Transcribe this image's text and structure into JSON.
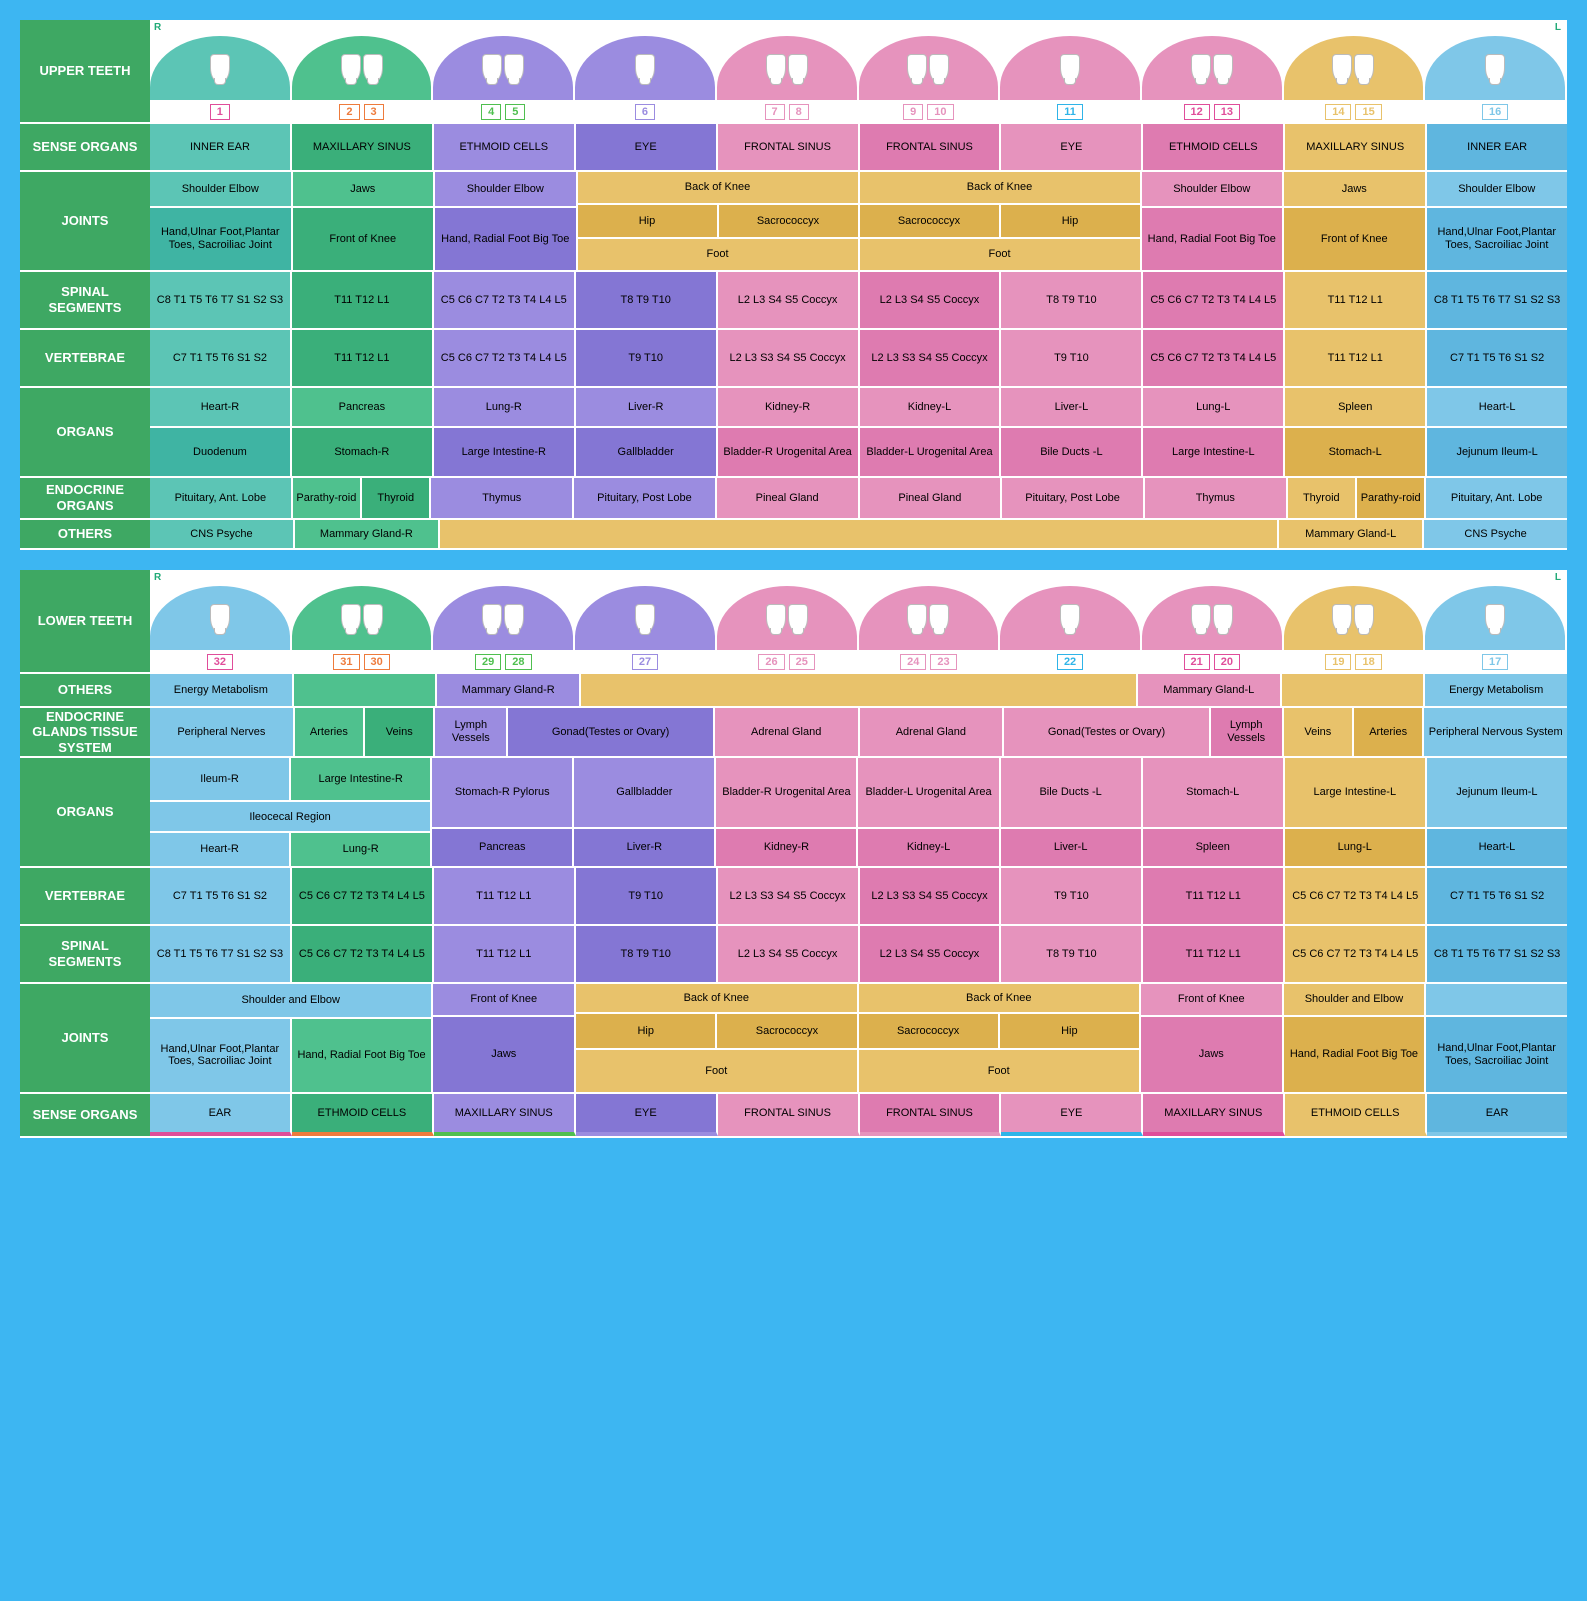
{
  "colors": {
    "bg": "#3db6f2",
    "label": "#3ea863",
    "teal": "#5cc5b5",
    "teal_d": "#3fb4a3",
    "green": "#4fc18e",
    "green_d": "#3aaf7a",
    "purple": "#9b8ce0",
    "purple_d": "#8476d4",
    "pink": "#e693bd",
    "pink_d": "#de7bb0",
    "gold": "#e8c26b",
    "gold_d": "#dcb04d",
    "blue": "#7fc7e8",
    "blue_d": "#5fb6df",
    "orange": "#ee7b3c",
    "magenta": "#e04d9a",
    "cyan": "#2fb4e8",
    "lime": "#4fbf4f"
  },
  "upper": {
    "title": "UPPER TEETH",
    "rows": [
      "SENSE ORGANS",
      "JOINTS",
      "SPINAL SEGMENTS",
      "VERTEBRAE",
      "ORGANS",
      "ENDOCRINE ORGANS",
      "OTHERS"
    ],
    "teeth": [
      {
        "n": [
          "1"
        ],
        "c": "teal",
        "uc": "magenta"
      },
      {
        "n": [
          "2",
          "3"
        ],
        "c": "green",
        "uc": "orange"
      },
      {
        "n": [
          "4",
          "5"
        ],
        "c": "purple",
        "uc": "lime"
      },
      {
        "n": [
          "6"
        ],
        "c": "purple",
        "uc": "purple"
      },
      {
        "n": [
          "7",
          "8"
        ],
        "c": "pink",
        "uc": "pink"
      },
      {
        "n": [
          "9",
          "10"
        ],
        "c": "pink",
        "uc": "pink"
      },
      {
        "n": [
          "11"
        ],
        "c": "pink",
        "uc": "cyan"
      },
      {
        "n": [
          "12",
          "13"
        ],
        "c": "pink",
        "uc": "magenta"
      },
      {
        "n": [
          "14",
          "15"
        ],
        "c": "gold",
        "uc": "gold"
      },
      {
        "n": [
          "16"
        ],
        "c": "blue",
        "uc": "blue"
      }
    ],
    "sense": [
      "INNER EAR",
      "MAXILLARY SINUS",
      "ETHMOID CELLS",
      "EYE",
      "FRONTAL SINUS",
      "FRONTAL SINUS",
      "EYE",
      "ETHMOID CELLS",
      "MAXILLARY SINUS",
      "INNER EAR"
    ],
    "joints_top": {
      "c1": "Shoulder Elbow",
      "c2": "Jaws",
      "c3": "Shoulder Elbow",
      "bk": "Back of Knee",
      "c8": "Shoulder Elbow",
      "c9": "Jaws",
      "c10": "Shoulder Elbow"
    },
    "joints_mid": {
      "c1": "Hand,Ulnar Foot,Plantar Toes, Sacroiliac Joint",
      "c2": "Front of Knee",
      "c3": "Hand, Radial Foot Big Toe",
      "hip1": "Hip",
      "sac1": "Sacrococcyx",
      "sac2": "Sacrococcyx",
      "hip2": "Hip",
      "c8": "Hand, Radial Foot Big Toe",
      "c9": "Front of Knee",
      "c10": "Hand,Ulnar Foot,Plantar Toes, Sacroiliac Joint",
      "foot1": "Foot",
      "foot2": "Foot"
    },
    "spinal": [
      "C8 T1 T5 T6 T7 S1 S2 S3",
      "T11 T12 L1",
      "C5 C6 C7 T2 T3 T4 L4 L5",
      "T8 T9 T10",
      "L2 L3 S4 S5 Coccyx",
      "L2 L3 S4 S5 Coccyx",
      "T8 T9 T10",
      "C5 C6 C7 T2 T3 T4 L4 L5",
      "T11 T12 L1",
      "C8 T1 T5 T6 T7 S1 S2 S3"
    ],
    "vert": [
      "C7 T1 T5 T6 S1 S2",
      "T11 T12 L1",
      "C5 C6 C7 T2 T3 T4 L4 L5",
      "T9 T10",
      "L2 L3 S3 S4 S5 Coccyx",
      "L2 L3 S3 S4 S5 Coccyx",
      "T9 T10",
      "C5 C6 C7 T2 T3 T4 L4 L5",
      "T11 T12 L1",
      "C7 T1 T5 T6 S1 S2"
    ],
    "organs1": [
      "Heart-R",
      "Pancreas",
      "Lung-R",
      "Liver-R",
      "Kidney-R",
      "Kidney-L",
      "Liver-L",
      "Lung-L",
      "Spleen",
      "Heart-L"
    ],
    "organs2": [
      "Duodenum",
      "Stomach-R",
      "Large Intestine-R",
      "Gallbladder",
      "Bladder-R Urogenital Area",
      "Bladder-L Urogenital Area",
      "Bile Ducts -L",
      "Large Intestine-L",
      "Stomach-L",
      "Jejunum Ileum-L"
    ],
    "endo": {
      "c1": "Pituitary, Ant. Lobe",
      "c2a": "Parathy-roid",
      "c2b": "Thyroid",
      "c3": "Thymus",
      "mid1": "Pituitary, Post Lobe",
      "pineal1": "Pineal Gland",
      "pineal2": "Pineal Gland",
      "mid2": "Pituitary, Post Lobe",
      "c8": "Thymus",
      "c9a": "Thyroid",
      "c9b": "Parathy-roid",
      "c10": "Pituitary, Ant. Lobe"
    },
    "others": {
      "c1": "CNS Psyche",
      "c2": "Mammary Gland-R",
      "c9": "Mammary Gland-L",
      "c10": "CNS Psyche"
    }
  },
  "lower": {
    "title": "LOWER TEETH",
    "rows": [
      "OTHERS",
      "ENDOCRINE GLANDS TISSUE SYSTEM",
      "ORGANS",
      "VERTEBRAE",
      "SPINAL SEGMENTS",
      "JOINTS",
      "SENSE ORGANS"
    ],
    "teeth": [
      {
        "n": [
          "32"
        ],
        "c": "blue",
        "uc": "magenta"
      },
      {
        "n": [
          "31",
          "30"
        ],
        "c": "green",
        "uc": "orange"
      },
      {
        "n": [
          "29",
          "28"
        ],
        "c": "purple",
        "uc": "lime"
      },
      {
        "n": [
          "27"
        ],
        "c": "purple",
        "uc": "purple"
      },
      {
        "n": [
          "26",
          "25"
        ],
        "c": "pink",
        "uc": "pink"
      },
      {
        "n": [
          "24",
          "23"
        ],
        "c": "pink",
        "uc": "pink"
      },
      {
        "n": [
          "22"
        ],
        "c": "pink",
        "uc": "cyan"
      },
      {
        "n": [
          "21",
          "20"
        ],
        "c": "pink",
        "uc": "magenta"
      },
      {
        "n": [
          "19",
          "18"
        ],
        "c": "gold",
        "uc": "gold"
      },
      {
        "n": [
          "17"
        ],
        "c": "blue",
        "uc": "blue"
      }
    ],
    "others": {
      "c1": "Energy Metabolism",
      "c3": "Mammary Gland-R",
      "c8": "Mammary Gland-L",
      "c10": "Energy Metabolism"
    },
    "endo": {
      "c1": "Peripheral Nerves",
      "c2a": "Arteries",
      "c2b": "Veins",
      "c3": "Lymph Vessels",
      "gonad1": "Gonad(Testes or Ovary)",
      "ad1": "Adrenal Gland",
      "ad2": "Adrenal Gland",
      "gonad2": "Gonad(Testes or Ovary)",
      "c8": "Lymph Vessels",
      "c9a": "Veins",
      "c9b": "Arteries",
      "c10": "Peripheral Nervous System"
    },
    "organs_a": {
      "c1": "Ileum-R",
      "c2": "Large Intestine-R",
      "c3": "Stomach-R Pylorus",
      "c4": "Gallbladder",
      "c5": "Bladder-R Urogenital Area",
      "c6": "Bladder-L Urogenital Area",
      "c7": "Bile Ducts -L",
      "c8": "Stomach-L",
      "c9": "Large Intestine-L",
      "c10": "Jejunum Ileum-L"
    },
    "organs_b": {
      "c12": "Ileocecal Region"
    },
    "organs_c": [
      "Heart-R",
      "Lung-R",
      "Pancreas",
      "Liver-R",
      "Kidney-R",
      "Kidney-L",
      "Liver-L",
      "Spleen",
      "Lung-L",
      "Heart-L"
    ],
    "vert": [
      "C7 T1 T5 T6 S1 S2",
      "C5 C6 C7 T2 T3 T4 L4 L5",
      "T11 T12 L1",
      "T9 T10",
      "L2 L3 S3 S4 S5 Coccyx",
      "L2 L3 S3 S4 S5 Coccyx",
      "T9 T10",
      "T11 T12 L1",
      "C5 C6 C7 T2 T3 T4 L4 L5",
      "C7 T1 T5 T6 S1 S2"
    ],
    "spinal": [
      "C8 T1 T5 T6 T7 S1 S2 S3",
      "C5 C6 C7 T2 T3 T4 L4 L5",
      "T11 T12 L1",
      "T8 T9 T10",
      "L2 L3 S4 S5 Coccyx",
      "L2 L3 S4 S5 Coccyx",
      "T8 T9 T10",
      "T11 T12 L1",
      "C5 C6 C7 T2 T3 T4 L4 L5",
      "C8 T1 T5 T6 T7 S1 S2 S3"
    ],
    "joints_a": {
      "se1": "Shoulder and Elbow",
      "fk1": "Front of Knee",
      "bk": "Back of Knee",
      "fk2": "Front of Knee",
      "se2": "Shoulder and Elbow"
    },
    "joints_b": {
      "c1": "Hand,Ulnar Foot,Plantar Toes, Sacroiliac Joint",
      "c2": "Hand, Radial Foot Big Toe",
      "c3": "Jaws",
      "hip1": "Hip",
      "sac1": "Sacrococcyx",
      "sac2": "Sacrococcyx",
      "hip2": "Hip",
      "c8": "Jaws",
      "c9": "Hand, Radial Foot Big Toe",
      "c10": "Hand,Ulnar Foot,Plantar Toes, Sacroiliac Joint",
      "foot1": "Foot",
      "foot2": "Foot"
    },
    "sense": [
      "EAR",
      "ETHMOID CELLS",
      "MAXILLARY SINUS",
      "EYE",
      "FRONTAL SINUS",
      "FRONTAL SINUS",
      "EYE",
      "MAXILLARY SINUS",
      "ETHMOID CELLS",
      "EAR"
    ]
  },
  "col_colors_upper": [
    "teal",
    "green",
    "purple",
    "purple",
    "pink",
    "pink",
    "pink",
    "pink",
    "gold",
    "blue"
  ],
  "col_colors_lower": [
    "blue",
    "green",
    "purple",
    "purple",
    "pink",
    "pink",
    "pink",
    "pink",
    "gold",
    "blue"
  ],
  "alt_shade": [
    "",
    "_d",
    "",
    "_d",
    "",
    "_d",
    "",
    "_d",
    "",
    "_d"
  ]
}
